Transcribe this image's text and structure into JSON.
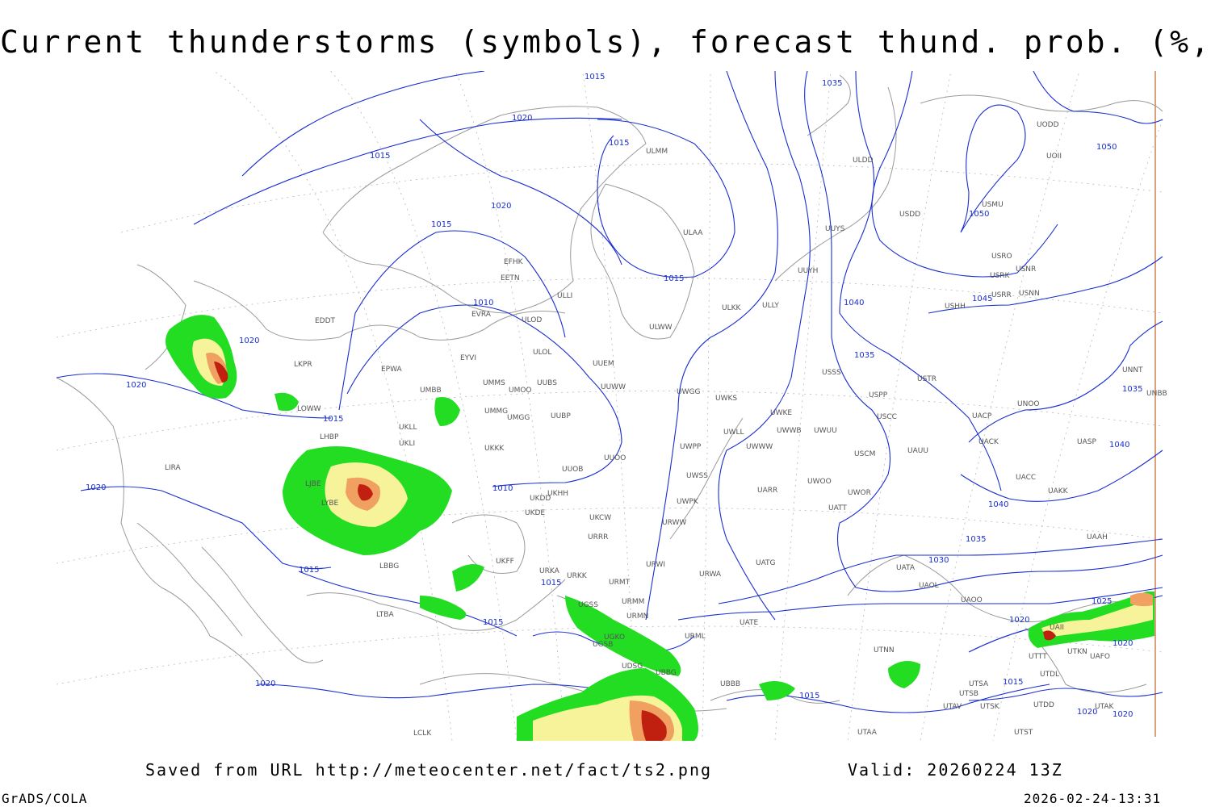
{
  "header": {
    "title": "Current thunderstorms (symbols), forecast thund. prob. (%, shaded)"
  },
  "footer": {
    "saved_from": "Saved from URL http://meteocenter.net/fact/ts2.png",
    "valid": "Valid: 20260224 13Z",
    "credit": "GrADS/COLA",
    "timestamp": "2026-02-24-13:31"
  },
  "colors": {
    "isobar": "#1a2ed0",
    "coastline": "#9a9a9a",
    "prob_low": "#22dd22",
    "prob_mid": "#f7f39a",
    "prob_high": "#f0a060",
    "prob_max": "#c02010"
  },
  "isobar_labels": [
    "1015",
    "1020",
    "1015",
    "1020",
    "1015",
    "1010",
    "1015",
    "1020",
    "1020",
    "1015",
    "1010",
    "1015",
    "1015",
    "1015",
    "1020",
    "1020",
    "1035",
    "1050",
    "1050",
    "1045",
    "1040",
    "1035",
    "1035",
    "1040",
    "1040",
    "1035",
    "1030",
    "1025",
    "1020",
    "1020",
    "1015",
    "1020",
    "1020",
    "1015",
    "1015"
  ],
  "stations": [
    "ULMM",
    "ULAA",
    "EFHK",
    "EETN",
    "ULLI",
    "EVRA",
    "ULOD",
    "ULOL",
    "EYVI",
    "UMMG",
    "UMMS",
    "UMOO",
    "UUBS",
    "UMGG",
    "UUBP",
    "UMBB",
    "EPWA",
    "LKPR",
    "EDDT",
    "LOWW",
    "LHBP",
    "UKLL",
    "UKLI",
    "UKKK",
    "UUOB",
    "UUOO",
    "LIRA",
    "LJBE",
    "LYBE",
    "LBBG",
    "UKDD",
    "UKHH",
    "UKDE",
    "UKCW",
    "URRR",
    "UKFF",
    "URKA",
    "URKK",
    "URMT",
    "URMM",
    "URMN",
    "UGSS",
    "UGKO",
    "UDSG",
    "UBBG",
    "UBBB",
    "UGSB",
    "URML",
    "URWA",
    "URWW",
    "URWI",
    "UATG",
    "UATE",
    "UATA",
    "UAOL",
    "UAOO",
    "UTNN",
    "UTSA",
    "UTSB",
    "UTAV",
    "UTSK",
    "UTST",
    "UTAA",
    "LTBA",
    "LCLK",
    "ULLY",
    "ULKK",
    "ULWW",
    "UUEM",
    "UUWW",
    "UWGG",
    "UWKS",
    "UWKE",
    "UWWB",
    "UWLL",
    "UWWW",
    "UWUU",
    "UWPP",
    "UWSS",
    "UWPK",
    "UARR",
    "UWOO",
    "UWOR",
    "UATT",
    "UUYH",
    "UUYS",
    "ULDD",
    "USDD",
    "USRR",
    "USRK",
    "USRO",
    "USNR",
    "USNN",
    "USMU",
    "USHH",
    "USSS",
    "USPP",
    "USTR",
    "USCC",
    "USCM",
    "UAUU",
    "UACK",
    "UACC",
    "UAKK",
    "UASP",
    "UAAH",
    "UNOO",
    "UNNT",
    "UNBB",
    "UODD",
    "UOII",
    "UTTT",
    "UTDL",
    "UTKN",
    "UAFO",
    "UAII",
    "UTDD",
    "UTAK",
    "UACP"
  ]
}
